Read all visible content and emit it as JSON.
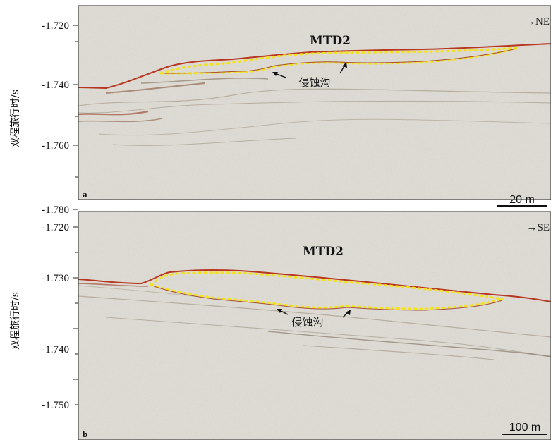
{
  "y_axis_label": "双程旅行时/s",
  "panels": [
    {
      "letter": "a",
      "unit_label": "MTD2",
      "direction": "→NE",
      "annotation": "侵蚀沟",
      "scale_bar": "20 m",
      "ticks": [
        "-1.720",
        "-1.740",
        "-1.760",
        "-1.780"
      ],
      "tick_values": [
        -1.72,
        -1.74,
        -1.76,
        -1.78
      ],
      "colors": {
        "background": "#e3e1da",
        "seafloor": "#b8361f",
        "dots": "#f4e21c"
      }
    },
    {
      "letter": "b",
      "unit_label": "MTD2",
      "direction": "→SE",
      "annotation": "侵蚀沟",
      "scale_bar": "100 m",
      "ticks": [
        "-1.720",
        "-1.730",
        "-1.740",
        "-1.750"
      ],
      "tick_values": [
        -1.72,
        -1.73,
        -1.74,
        -1.75
      ],
      "colors": {
        "background": "#e3e1da",
        "seafloor": "#b8361f",
        "dots": "#f4e21c"
      }
    }
  ]
}
